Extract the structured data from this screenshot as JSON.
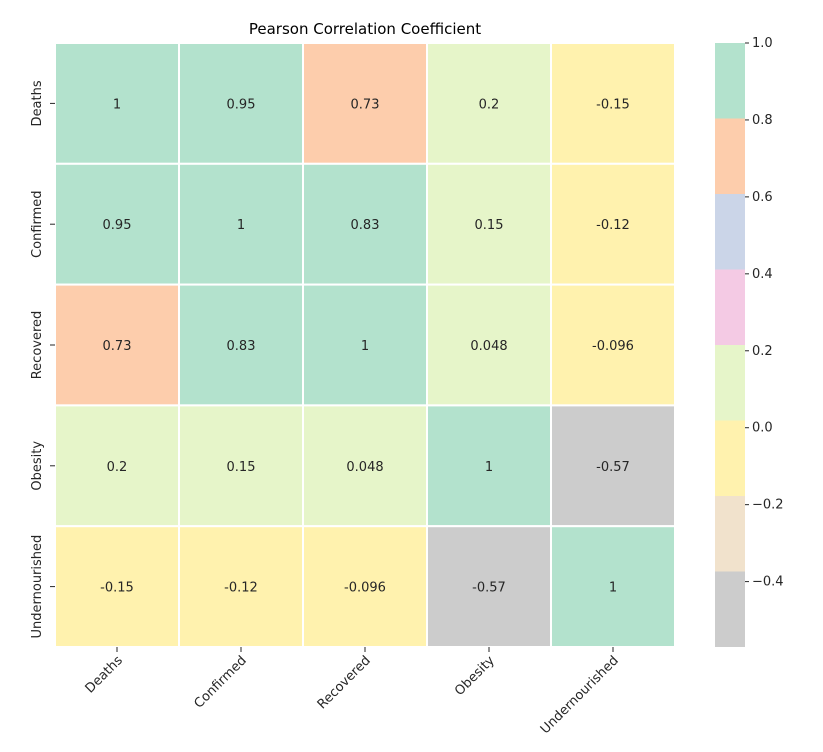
{
  "chart_data": {
    "type": "heatmap",
    "title": "Pearson Correlation Coefficient",
    "rows": [
      "Deaths",
      "Confirmed",
      "Recovered",
      "Obesity",
      "Undernourished"
    ],
    "columns": [
      "Deaths",
      "Confirmed",
      "Recovered",
      "Obesity",
      "Undernourished"
    ],
    "values": [
      [
        1,
        0.95,
        0.73,
        0.2,
        -0.15
      ],
      [
        0.95,
        1,
        0.83,
        0.15,
        -0.12
      ],
      [
        0.73,
        0.83,
        1,
        0.048,
        -0.096
      ],
      [
        0.2,
        0.15,
        0.048,
        1,
        -0.57
      ],
      [
        -0.15,
        -0.12,
        -0.096,
        -0.57,
        1
      ]
    ],
    "annotations": [
      [
        "1",
        "0.95",
        "0.73",
        "0.2",
        "-0.15"
      ],
      [
        "0.95",
        "1",
        "0.83",
        "0.15",
        "-0.12"
      ],
      [
        "0.73",
        "0.83",
        "1",
        "0.048",
        "-0.096"
      ],
      [
        "0.2",
        "0.15",
        "0.048",
        "1",
        "-0.57"
      ],
      [
        "-0.15",
        "-0.12",
        "-0.096",
        "-0.57",
        "1"
      ]
    ],
    "colorbar": {
      "vmin": -0.57,
      "vmax": 1.0,
      "ticks": [
        1.0,
        0.8,
        0.6,
        0.4,
        0.2,
        0.0,
        -0.2,
        -0.4
      ],
      "tick_labels": [
        "1.0",
        "0.8",
        "0.6",
        "0.4",
        "0.2",
        "0.0",
        "−0.2",
        "−0.4"
      ],
      "palette": [
        "#cccccc",
        "#f1e2cc",
        "#fff2ae",
        "#e6f5c9",
        "#f4cae4",
        "#cbd5e8",
        "#fdcdac",
        "#b3e2cd"
      ]
    },
    "grid": true,
    "gridline_color": "#ffffff",
    "legend": "right"
  }
}
